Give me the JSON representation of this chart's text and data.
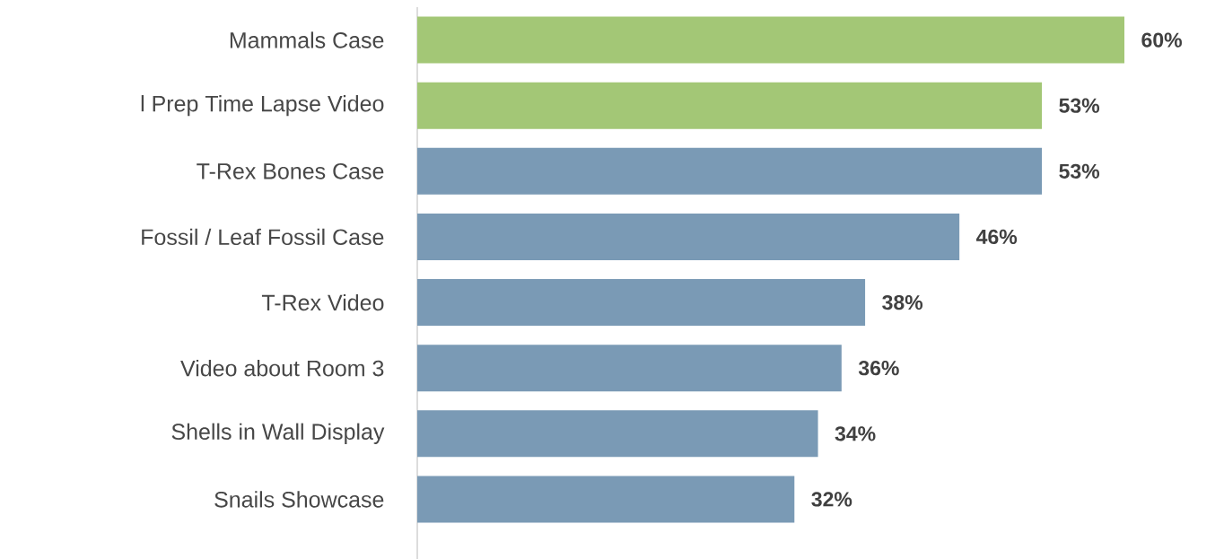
{
  "chart_data": {
    "type": "bar",
    "orientation": "horizontal",
    "categories": [
      "Mammals Case",
      "l Prep Time Lapse Video",
      "T-Rex Bones Case",
      "Fossil / Leaf Fossil Case",
      "T-Rex Video",
      "Video about Room 3",
      "Shells in Wall Display",
      "Snails Showcase"
    ],
    "values": [
      60,
      53,
      53,
      46,
      38,
      36,
      34,
      32
    ],
    "value_labels": [
      "60%",
      "53%",
      "53%",
      "46%",
      "38%",
      "36%",
      "34%",
      "32%"
    ],
    "colors": [
      "#a3c776",
      "#a3c776",
      "#7a9ab5",
      "#7a9ab5",
      "#7a9ab5",
      "#7a9ab5",
      "#7a9ab5",
      "#7a9ab5"
    ]
  }
}
